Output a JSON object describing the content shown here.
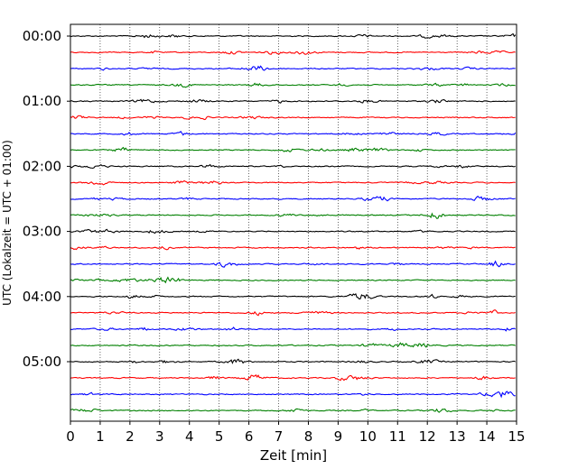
{
  "chart_data": {
    "type": "line",
    "title": "",
    "xlabel": "Zeit  [min]",
    "ylabel": "UTC (Lokalzeit = UTC + 01:00)",
    "xlim": [
      0,
      15
    ],
    "x_ticks": [
      0,
      1,
      2,
      3,
      4,
      5,
      6,
      7,
      8,
      9,
      10,
      11,
      12,
      13,
      14,
      15
    ],
    "y_tick_labels": [
      "00:00",
      "01:00",
      "02:00",
      "03:00",
      "04:00",
      "05:00"
    ],
    "trace_interval_min": 15,
    "trace_count": 24,
    "trace_colors": [
      "#000000",
      "#ff0000",
      "#0000ff",
      "#008000"
    ],
    "grid_x": true,
    "grid_y": false
  }
}
